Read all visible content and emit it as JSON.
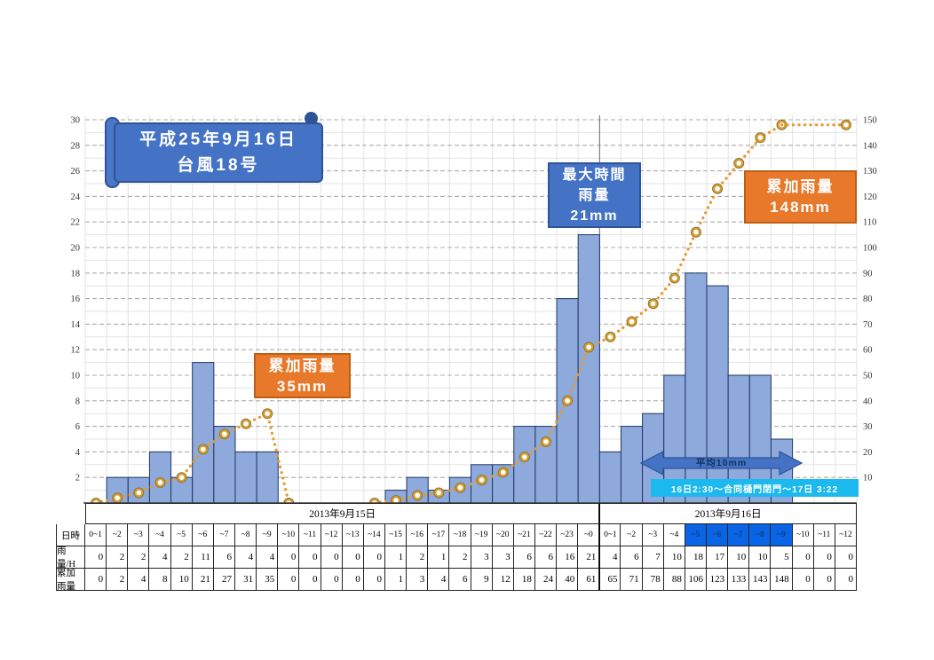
{
  "banner": {
    "line1": "平成25年9月16日",
    "line2": "台風18号"
  },
  "callouts": {
    "cum35": {
      "line1": "累加雨量",
      "line2": "35mm"
    },
    "max21": {
      "line1": "最大時間",
      "line2": "雨量",
      "line3": "21mm"
    },
    "cum148": {
      "line1": "累加雨量",
      "line2": "148mm"
    }
  },
  "annotations": {
    "avg_arrow_label": "平均10mm",
    "gate_label": "16日2:30～合同樋門閉門～17日 3:22"
  },
  "chart_data": {
    "type": "bar",
    "title": "",
    "xlabel": "",
    "ylabel_left": "",
    "ylabel_right": "",
    "categories": [
      "0~1",
      "~2",
      "~3",
      "~4",
      "~5",
      "~6",
      "~7",
      "~8",
      "~9",
      "~10",
      "~11",
      "~12",
      "~13",
      "~14",
      "~15",
      "~16",
      "~17",
      "~18",
      "~19",
      "~20",
      "~21",
      "~22",
      "~23",
      "~0",
      "0~1",
      "~2",
      "~3",
      "~4",
      "~5",
      "~6",
      "~7",
      "~8",
      "~9",
      "~10",
      "~11",
      "~12"
    ],
    "day_groups": [
      {
        "label": "2013年9月15日",
        "count": 24
      },
      {
        "label": "2013年9月16日",
        "count": 12
      }
    ],
    "series": [
      {
        "name": "雨量/H",
        "type": "bar",
        "axis": "left",
        "values": [
          0,
          2,
          2,
          4,
          2,
          11,
          6,
          4,
          4,
          0,
          0,
          0,
          0,
          0,
          1,
          2,
          1,
          2,
          3,
          3,
          6,
          6,
          16,
          21,
          4,
          6,
          7,
          10,
          18,
          17,
          10,
          10,
          5,
          0,
          0,
          0
        ]
      },
      {
        "name": "累加雨量",
        "type": "line-dotted",
        "axis": "right",
        "segments": [
          {
            "markers": "all",
            "points": [
              [
                0,
                0
              ],
              [
                1,
                2
              ],
              [
                2,
                4
              ],
              [
                3,
                8
              ],
              [
                4,
                10
              ],
              [
                5,
                21
              ],
              [
                6,
                27
              ],
              [
                7,
                31
              ],
              [
                8,
                35
              ],
              [
                9,
                0
              ]
            ]
          },
          {
            "markers": "all",
            "points": [
              [
                13,
                0
              ],
              [
                14,
                1
              ],
              [
                15,
                3
              ],
              [
                16,
                4
              ],
              [
                17,
                6
              ],
              [
                18,
                9
              ],
              [
                19,
                12
              ],
              [
                20,
                18
              ],
              [
                21,
                24
              ],
              [
                22,
                40
              ],
              [
                23,
                61
              ],
              [
                24,
                65
              ],
              [
                25,
                71
              ],
              [
                26,
                78
              ],
              [
                27,
                88
              ],
              [
                28,
                106
              ],
              [
                29,
                123
              ],
              [
                30,
                133
              ],
              [
                31,
                143
              ],
              [
                32,
                148
              ]
            ]
          },
          {
            "markers": "last",
            "points": [
              [
                32,
                148
              ],
              [
                35,
                148
              ]
            ]
          }
        ]
      }
    ],
    "left_axis": {
      "min": 0,
      "max": 30,
      "tick_step": 2,
      "grid": true
    },
    "right_axis": {
      "min": 0,
      "max": 150,
      "tick_step": 10,
      "grid": true
    },
    "highlighted_hour_columns": [
      28,
      29,
      30,
      31,
      32
    ],
    "legend": "none"
  },
  "table": {
    "row_headers": [
      "日時",
      "雨量/H",
      "累加雨量"
    ],
    "hours": [
      "0~1",
      "~2",
      "~3",
      "~4",
      "~5",
      "~6",
      "~7",
      "~8",
      "~9",
      "~10",
      "~11",
      "~12",
      "~13",
      "~14",
      "~15",
      "~16",
      "~17",
      "~18",
      "~19",
      "~20",
      "~21",
      "~22",
      "~23",
      "~0",
      "0~1",
      "~2",
      "~3",
      "~4",
      "~5",
      "~6",
      "~7",
      "~8",
      "~9",
      "~10",
      "~11",
      "~12"
    ],
    "rain_per_hour": [
      0,
      2,
      2,
      4,
      2,
      11,
      6,
      4,
      4,
      0,
      0,
      0,
      0,
      0,
      1,
      2,
      1,
      2,
      3,
      3,
      6,
      6,
      16,
      21,
      4,
      6,
      7,
      10,
      18,
      17,
      10,
      10,
      5,
      0,
      0,
      0
    ],
    "cumulative": [
      0,
      2,
      4,
      8,
      10,
      21,
      27,
      31,
      35,
      0,
      0,
      0,
      0,
      0,
      1,
      3,
      4,
      6,
      9,
      12,
      18,
      24,
      40,
      61,
      65,
      71,
      78,
      88,
      106,
      123,
      133,
      143,
      148,
      0,
      0,
      0
    ]
  },
  "colors": {
    "bar_fill": "#8EA9DB",
    "bar_border": "#1F3864",
    "line": "#E49B33",
    "marker_ring": "#D9A02F",
    "marker_outline": "#8C7434",
    "banner_blue": "#4472C4",
    "banner_mid": "#4b77c9",
    "banner_border": "#2F5496",
    "orange": "#E8782A",
    "orange_border": "#BF5E12",
    "highlight_blue": "#0A64E6",
    "cyan": "#1CB9EE",
    "grid_minor": "#E3E3E3",
    "grid_major": "#ACACAC",
    "axis_line": "#3F3F3F",
    "tick_text": "#333333"
  }
}
